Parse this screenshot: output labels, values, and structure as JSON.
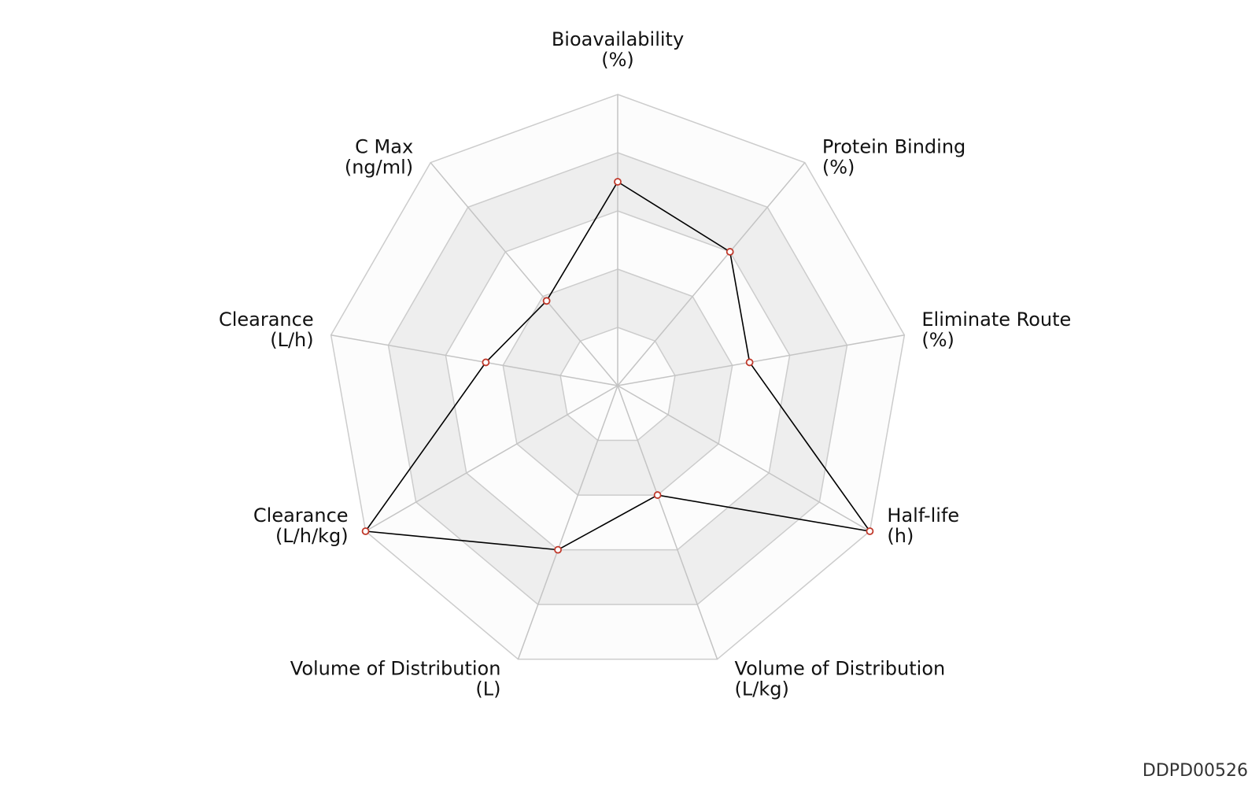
{
  "chart_data": {
    "type": "radar",
    "axes": [
      {
        "name": "Bioavailability",
        "unit": "(%)"
      },
      {
        "name": "Protein Binding",
        "unit": "(%)"
      },
      {
        "name": "Eliminate Route",
        "unit": "(%)"
      },
      {
        "name": "Half-life",
        "unit": "(h)"
      },
      {
        "name": "Volume of Distribution",
        "unit": "(L/kg)"
      },
      {
        "name": "Volume of Distribution",
        "unit": "(L)"
      },
      {
        "name": "Clearance",
        "unit": "(L/h/kg)"
      },
      {
        "name": "Clearance",
        "unit": "(L/h)"
      },
      {
        "name": "C Max",
        "unit": "(ng/ml)"
      }
    ],
    "rings": 5,
    "range": [
      0,
      5
    ],
    "values": [
      3.5,
      3.0,
      2.3,
      5.0,
      2.0,
      3.0,
      5.0,
      2.3,
      1.9
    ],
    "colors": {
      "band_fill": "#eeeeee",
      "ring_stroke": "#cccccc",
      "series_line": "#000000",
      "point_stroke": "#c0392b",
      "point_fill": "#ffffff"
    }
  },
  "watermark": "DDPD00526"
}
